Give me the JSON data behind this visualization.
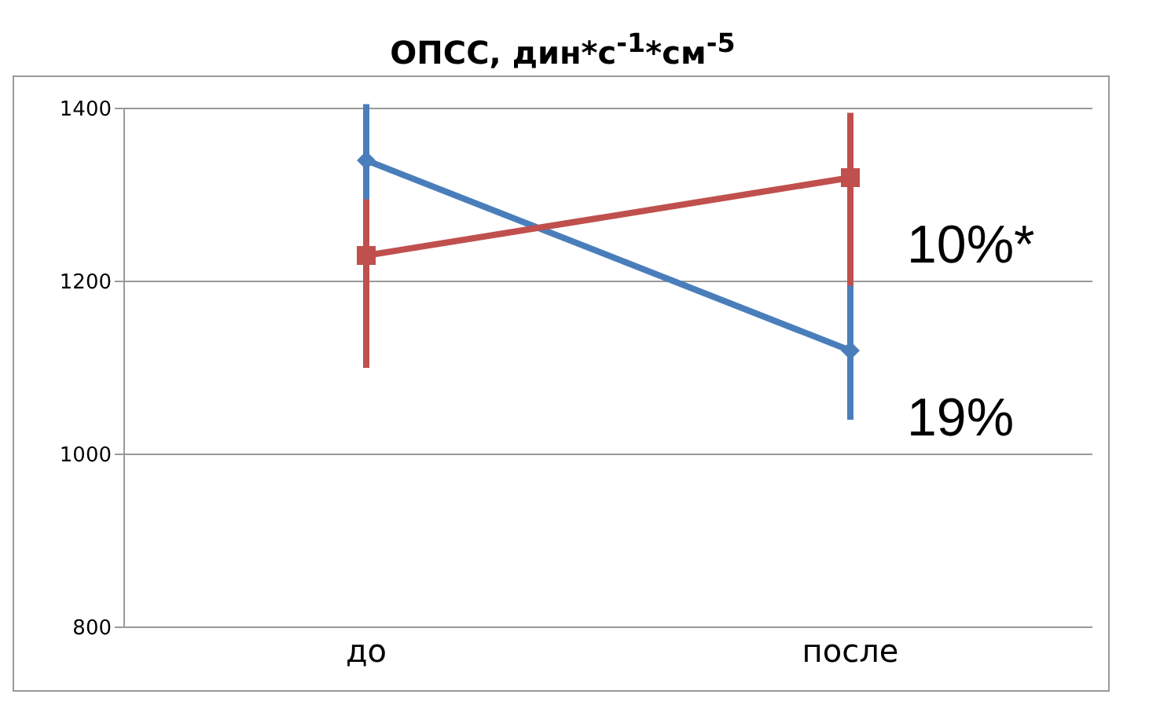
{
  "chart_data": {
    "type": "line",
    "title": "ОПСС, дин*с$^{-1}$*см$^{-5}$",
    "categories": [
      "до",
      "после"
    ],
    "series": [
      {
        "color": "#4a7ebb",
        "marker": "diamond",
        "values": [
          1340,
          1120
        ],
        "errors": [
          [
            1275,
            1405
          ],
          [
            1040,
            1225
          ]
        ]
      },
      {
        "color": "#c0504d",
        "marker": "square",
        "values": [
          1230,
          1320
        ],
        "errors": [
          [
            1100,
            1295
          ],
          [
            1195,
            1395
          ]
        ]
      }
    ],
    "ylim": [
      800,
      1400
    ],
    "yticks": [
      800,
      1000,
      1200,
      1400
    ],
    "grid": "y",
    "annotations": [
      {
        "text": "10%*",
        "x": "после",
        "y": 1320
      },
      {
        "text": "19%",
        "x": "после",
        "y": 1120
      }
    ]
  }
}
